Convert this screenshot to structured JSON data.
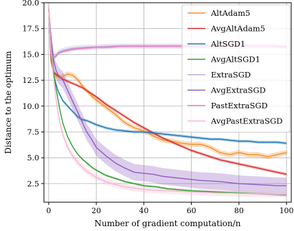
{
  "chart_data": {
    "type": "line",
    "title": "",
    "xlabel": "Number of gradient computation/n",
    "ylabel": "Distance to the optimum",
    "xlim": [
      -2,
      102
    ],
    "ylim": [
      0.7,
      20.0
    ],
    "xticks": [
      0,
      20,
      40,
      60,
      80,
      100
    ],
    "yticks": [
      2.5,
      5.0,
      7.5,
      10.0,
      12.5,
      15.0,
      17.5,
      20.0
    ],
    "xtick_labels": [
      "0",
      "20",
      "40",
      "60",
      "80",
      "100"
    ],
    "ytick_labels": [
      "2.5",
      "5.0",
      "7.5",
      "10.0",
      "12.5",
      "15.0",
      "17.5",
      "20.0"
    ],
    "grid": true,
    "legend_position": "top-right",
    "series": [
      {
        "name": "AltAdam5",
        "color": "#f28e2b",
        "band": 0.25,
        "x": [
          0,
          1,
          2,
          3,
          5,
          7,
          8,
          10,
          12,
          14,
          16,
          18,
          20,
          24,
          28,
          32,
          36,
          40,
          42,
          44,
          48,
          52,
          56,
          60,
          64,
          68,
          72,
          76,
          80,
          84,
          88,
          92,
          96,
          100
        ],
        "y": [
          19.4,
          14.2,
          13.3,
          12.9,
          12.8,
          13.0,
          13.1,
          13.0,
          12.6,
          12.0,
          11.5,
          11.0,
          10.6,
          9.9,
          9.2,
          8.4,
          7.9,
          7.6,
          7.4,
          7.1,
          6.7,
          6.6,
          6.4,
          6.3,
          6.3,
          6.0,
          5.5,
          5.3,
          5.5,
          5.3,
          5.3,
          5.1,
          5.3,
          5.5
        ]
      },
      {
        "name": "AvgAltAdam5",
        "color": "#d62728",
        "band": 0.15,
        "x": [
          0,
          1,
          2,
          4,
          6,
          8,
          10,
          12,
          14,
          16,
          20,
          24,
          28,
          32,
          36,
          40,
          44,
          48,
          52,
          56,
          60,
          64,
          68,
          72,
          76,
          80,
          84,
          88,
          92,
          96,
          100
        ],
        "y": [
          19.4,
          14.5,
          13.3,
          12.9,
          12.6,
          12.4,
          12.2,
          12.0,
          11.8,
          11.5,
          10.9,
          10.2,
          9.6,
          9.0,
          8.4,
          7.9,
          7.4,
          6.9,
          6.5,
          6.1,
          5.7,
          5.4,
          5.1,
          4.8,
          4.6,
          4.4,
          4.2,
          4.0,
          3.8,
          3.6,
          3.4
        ]
      },
      {
        "name": "AltSGD1",
        "color": "#1f77b4",
        "band": 0.15,
        "x": [
          0,
          1,
          2,
          3,
          4,
          6,
          8,
          10,
          12,
          14,
          16,
          18,
          20,
          24,
          28,
          32,
          36,
          40,
          44,
          48,
          52,
          56,
          60,
          64,
          68,
          72,
          76,
          80,
          84,
          88,
          92,
          96,
          100
        ],
        "y": [
          19.4,
          15.0,
          13.2,
          12.2,
          11.4,
          10.5,
          10.0,
          9.5,
          9.0,
          8.7,
          8.6,
          8.4,
          8.2,
          7.9,
          7.7,
          7.6,
          7.5,
          7.5,
          7.4,
          7.3,
          7.2,
          7.1,
          7.0,
          6.9,
          6.8,
          6.8,
          6.7,
          6.6,
          6.6,
          6.5,
          6.5,
          6.5,
          6.4
        ]
      },
      {
        "name": "AvgAltSGD1",
        "color": "#2ca02c",
        "band": 0.1,
        "x": [
          0,
          1,
          2,
          3,
          4,
          5,
          6,
          8,
          10,
          12,
          14,
          16,
          18,
          20,
          24,
          28,
          32,
          36,
          40,
          45,
          50,
          55,
          60,
          65,
          70,
          75,
          80,
          85,
          90,
          95,
          100
        ],
        "y": [
          19.4,
          16.0,
          13.5,
          11.8,
          10.5,
          9.3,
          8.3,
          7.0,
          6.1,
          5.4,
          4.9,
          4.5,
          4.1,
          3.8,
          3.3,
          3.0,
          2.7,
          2.5,
          2.3,
          2.2,
          2.0,
          1.9,
          1.8,
          1.75,
          1.7,
          1.65,
          1.6,
          1.55,
          1.5,
          1.45,
          1.4
        ]
      },
      {
        "name": "ExtraSGD",
        "color": "#b5b0d8",
        "band": 0.25,
        "x": [
          0,
          1,
          2,
          3,
          4,
          6,
          8,
          10,
          15,
          20,
          25,
          30,
          35,
          40,
          45,
          50,
          55,
          60,
          65,
          70,
          75,
          80,
          85,
          90,
          95,
          100
        ],
        "y": [
          19.4,
          15.0,
          14.8,
          14.9,
          15.2,
          15.4,
          15.5,
          15.6,
          15.7,
          15.7,
          15.8,
          15.8,
          15.8,
          15.8,
          15.8,
          15.8,
          15.8,
          15.8,
          15.8,
          15.8,
          15.8,
          15.8,
          15.8,
          15.8,
          15.8,
          15.8
        ]
      },
      {
        "name": "AvgExtraSGD",
        "color": "#8e5bbf",
        "band": 0.8,
        "x": [
          0,
          1,
          2,
          3,
          4,
          6,
          8,
          10,
          12,
          14,
          16,
          18,
          20,
          24,
          28,
          32,
          36,
          40,
          44,
          48,
          52,
          56,
          60,
          64,
          68,
          72,
          76,
          80,
          84,
          88,
          92,
          96,
          100
        ],
        "y": [
          19.4,
          16.5,
          14.5,
          13.5,
          13.0,
          12.5,
          11.5,
          10.5,
          9.5,
          8.5,
          7.5,
          6.8,
          6.0,
          5.2,
          4.5,
          4.0,
          3.6,
          3.5,
          3.4,
          3.2,
          3.1,
          3.0,
          2.9,
          2.8,
          2.75,
          2.7,
          2.6,
          2.5,
          2.45,
          2.4,
          2.35,
          2.3,
          2.3
        ]
      },
      {
        "name": "PastExtraSGD",
        "color": "#e377c2",
        "band": 0.15,
        "x": [
          0,
          1,
          2,
          3,
          4,
          6,
          8,
          10,
          15,
          20,
          25,
          30,
          35,
          40,
          45,
          50,
          55,
          60,
          65,
          70,
          75,
          80,
          85,
          90,
          95,
          100
        ],
        "y": [
          19.4,
          15.0,
          14.7,
          14.8,
          15.1,
          15.3,
          15.4,
          15.5,
          15.6,
          15.7,
          15.7,
          15.8,
          15.8,
          15.8,
          15.8,
          15.8,
          15.8,
          15.8,
          15.8,
          15.8,
          15.8,
          15.8,
          15.8,
          15.8,
          15.8,
          15.7
        ]
      },
      {
        "name": "AvgPastExtraSGD",
        "color": "#f7b6d2",
        "band": 0.3,
        "x": [
          0,
          1,
          2,
          3,
          4,
          5,
          6,
          8,
          10,
          12,
          14,
          16,
          18,
          20,
          24,
          28,
          32,
          36,
          40,
          45,
          50,
          55,
          60,
          65,
          70,
          75,
          80,
          85,
          90,
          95,
          100
        ],
        "y": [
          19.4,
          15.5,
          12.8,
          10.8,
          9.3,
          8.1,
          7.2,
          6.0,
          5.2,
          4.6,
          4.1,
          3.7,
          3.4,
          3.1,
          2.7,
          2.4,
          2.2,
          2.05,
          1.95,
          1.85,
          1.8,
          1.75,
          1.7,
          1.65,
          1.6,
          1.58,
          1.55,
          1.52,
          1.5,
          1.48,
          1.45
        ]
      }
    ]
  }
}
